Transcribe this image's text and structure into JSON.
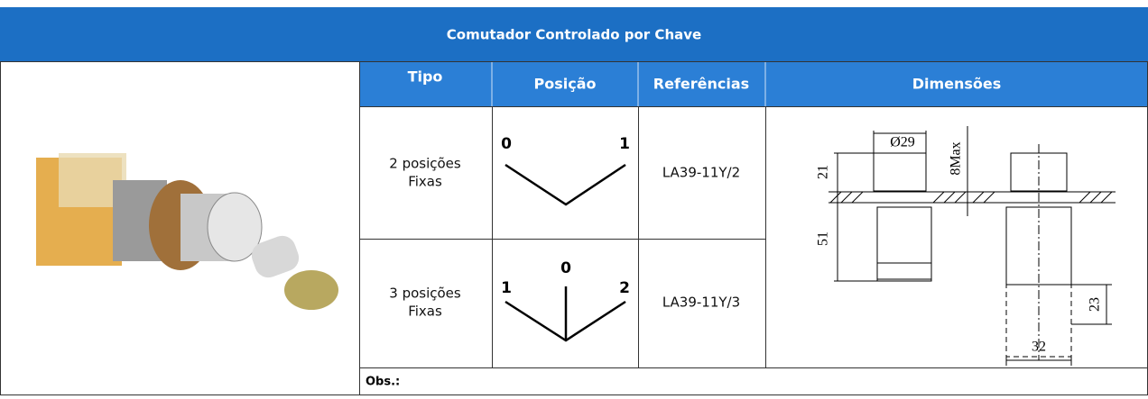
{
  "header": {
    "title": "Comutador Controlado por Chave"
  },
  "table": {
    "headers": [
      "Tipo",
      "Posição",
      "Referências",
      "Dimensões"
    ],
    "rows": [
      {
        "type": [
          "2 posições",
          "Fixas"
        ],
        "positions": [
          "0",
          "1"
        ],
        "reference": "LA39-11Y/2"
      },
      {
        "type": [
          "3 posições",
          "Fixas"
        ],
        "positions": [
          "1",
          "0",
          "2"
        ],
        "reference": "LA39-11Y/3"
      }
    ],
    "dimensions": [
      "Ø29",
      "8Max",
      "21",
      "51",
      "23",
      "32"
    ],
    "obs": "Obs.:"
  }
}
